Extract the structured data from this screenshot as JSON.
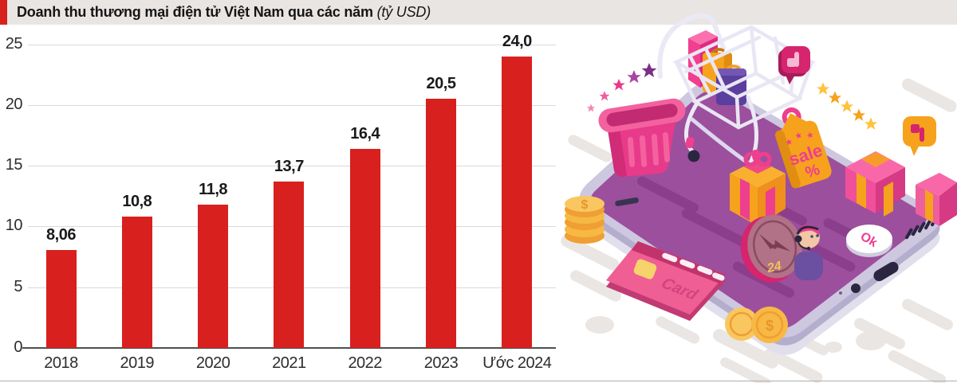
{
  "header": {
    "title_bold": "Doanh thu thương mại điện tử Việt Nam qua các năm",
    "title_unit": " (tỷ USD)"
  },
  "chart_data": {
    "type": "bar",
    "title": "Doanh thu thương mại điện tử Việt Nam qua các năm (tỷ USD)",
    "categories": [
      "2018",
      "2019",
      "2020",
      "2021",
      "2022",
      "2023",
      "Ước 2024"
    ],
    "values": [
      8.06,
      10.8,
      11.8,
      13.7,
      16.4,
      20.5,
      24.0
    ],
    "value_labels": [
      "8,06",
      "10,8",
      "11,8",
      "13,7",
      "16,4",
      "20,5",
      "24,0"
    ],
    "xlabel": "",
    "ylabel": "",
    "ylim": [
      0,
      25
    ],
    "yticks": [
      0,
      5,
      10,
      15,
      20,
      25
    ],
    "grid": true,
    "legend": "none",
    "bar_color": "#d8201e"
  },
  "colors": {
    "accent_red": "#d8201e",
    "header_band": "#e9e5e2",
    "phone_screen_purple": "#9c4f9c",
    "phone_body_lavender": "#cdc7e0",
    "pink": "#ee3f8e",
    "orange": "#f6a21d",
    "gold": "#f7b844"
  },
  "illustration": {
    "description": "isometric smartphone with online-shopping elements: cart, basket, gifts, sale tag, coins, credit card, ratings, 24h support",
    "labels": {
      "sale": "sale",
      "percent": "%",
      "card": "Card",
      "ok": "Ok",
      "hours": "24",
      "dollar": "$"
    }
  }
}
